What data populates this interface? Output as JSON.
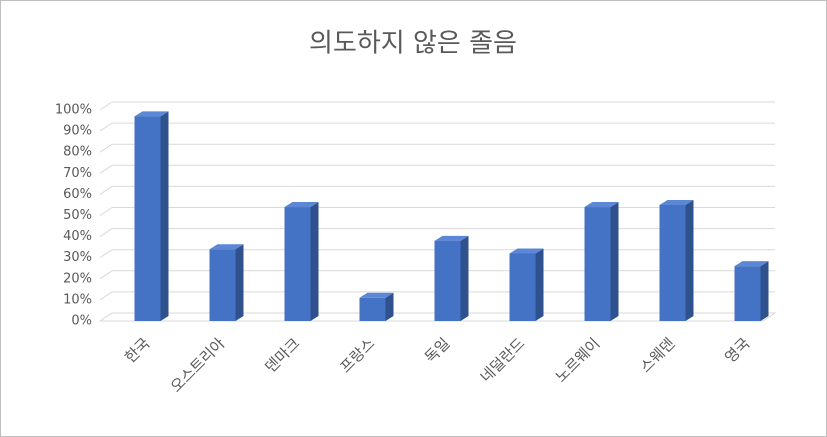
{
  "chart_data": {
    "type": "bar3d",
    "title": "의도하지 않은 졸음",
    "categories": [
      "한국",
      "오스트리아",
      "덴마크",
      "프랑스",
      "독일",
      "네덜란드",
      "노르웨이",
      "스웨덴",
      "영국"
    ],
    "values": [
      97,
      34,
      54,
      11,
      38,
      32,
      54,
      55,
      26
    ],
    "color": "#4472c4",
    "ylim": [
      0,
      100
    ],
    "yticks": [
      {
        "value": 0,
        "label": "0%"
      },
      {
        "value": 10,
        "label": "10%"
      },
      {
        "value": 20,
        "label": "20%"
      },
      {
        "value": 30,
        "label": "30%"
      },
      {
        "value": 40,
        "label": "40%"
      },
      {
        "value": 50,
        "label": "50%"
      },
      {
        "value": 60,
        "label": "60%"
      },
      {
        "value": 70,
        "label": "70%"
      },
      {
        "value": 80,
        "label": "80%"
      },
      {
        "value": 90,
        "label": "90%"
      },
      {
        "value": 100,
        "label": "100%"
      }
    ],
    "grid": true
  }
}
